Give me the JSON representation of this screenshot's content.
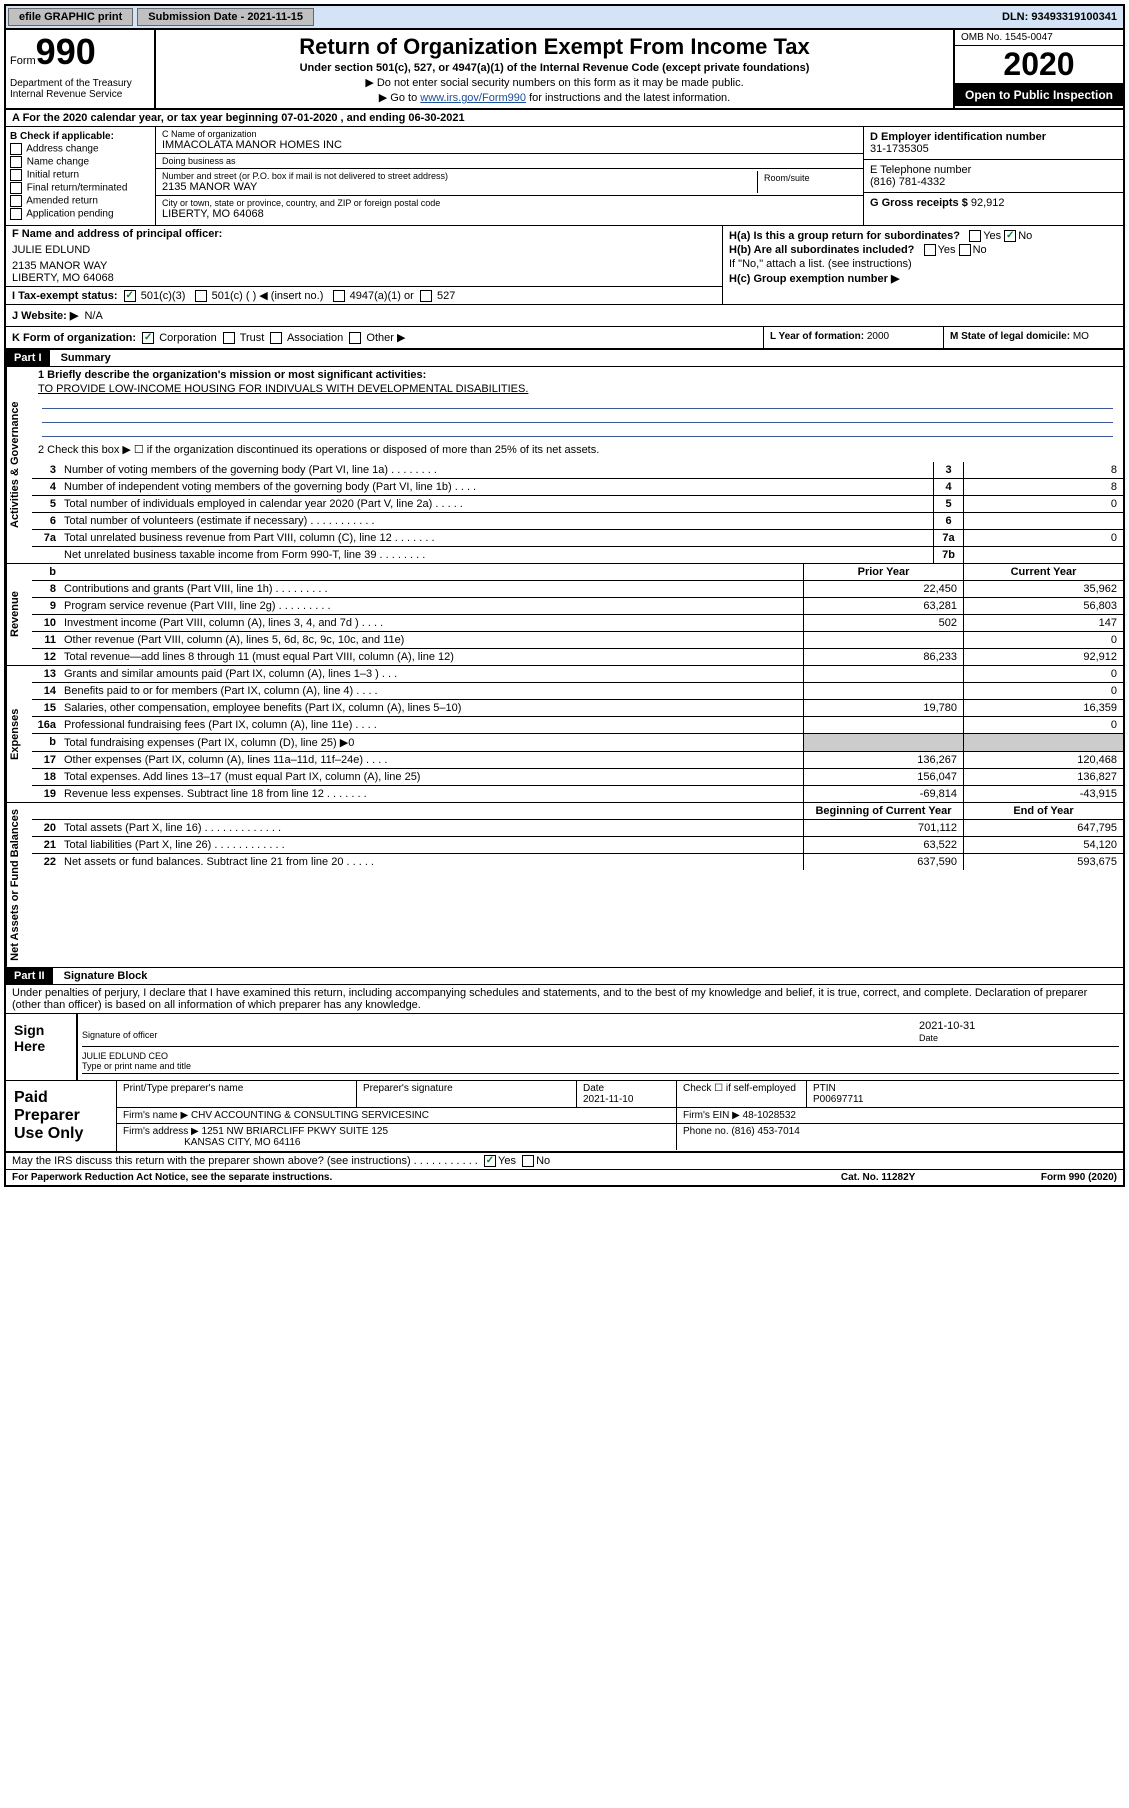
{
  "topbar": {
    "efile": "efile GRAPHIC print",
    "subdate_lbl": "Submission Date - 2021-11-15",
    "dln": "DLN: 93493319100341"
  },
  "header": {
    "form_lbl": "Form",
    "form_no": "990",
    "dept": "Department of the Treasury\nInternal Revenue Service",
    "title": "Return of Organization Exempt From Income Tax",
    "sub": "Under section 501(c), 527, or 4947(a)(1) of the Internal Revenue Code (except private foundations)",
    "note1": "▶ Do not enter social security numbers on this form as it may be made public.",
    "note2_pre": "▶ Go to ",
    "note2_link": "www.irs.gov/Form990",
    "note2_post": " for instructions and the latest information.",
    "omb": "OMB No. 1545-0047",
    "year": "2020",
    "open": "Open to Public Inspection"
  },
  "a_row": "A For the 2020 calendar year, or tax year beginning 07-01-2020    , and ending 06-30-2021",
  "b": {
    "hdr": "B Check if applicable:",
    "opts": [
      "Address change",
      "Name change",
      "Initial return",
      "Final return/terminated",
      "Amended return",
      "Application pending"
    ]
  },
  "c": {
    "name_lbl": "C Name of organization",
    "name": "IMMACOLATA MANOR HOMES INC",
    "dba_lbl": "Doing business as",
    "addr_lbl": "Number and street (or P.O. box if mail is not delivered to street address)",
    "addr": "2135 MANOR WAY",
    "room_lbl": "Room/suite",
    "city_lbl": "City or town, state or province, country, and ZIP or foreign postal code",
    "city": "LIBERTY, MO  64068"
  },
  "d": {
    "lbl": "D Employer identification number",
    "val": "31-1735305"
  },
  "e": {
    "lbl": "E Telephone number",
    "val": "(816) 781-4332"
  },
  "g": {
    "lbl": "G Gross receipts $",
    "val": "92,912"
  },
  "f": {
    "lbl": "F Name and address of principal officer:",
    "name": "JULIE EDLUND",
    "addr": "2135 MANOR WAY\nLIBERTY, MO  64068"
  },
  "h": {
    "a": "H(a)  Is this a group return for subordinates?",
    "b": "H(b)  Are all subordinates included?",
    "bnote": "If \"No,\" attach a list. (see instructions)",
    "c": "H(c)  Group exemption number ▶"
  },
  "i": {
    "lbl": "I   Tax-exempt status:",
    "o1": "501(c)(3)",
    "o2": "501(c) (  ) ◀ (insert no.)",
    "o3": "4947(a)(1) or",
    "o4": "527"
  },
  "j": {
    "lbl": "J   Website: ▶",
    "val": "N/A"
  },
  "k": {
    "lbl": "K Form of organization:",
    "opts": [
      "Corporation",
      "Trust",
      "Association",
      "Other ▶"
    ],
    "l_lbl": "L Year of formation:",
    "l_val": "2000",
    "m_lbl": "M State of legal domicile:",
    "m_val": "MO"
  },
  "part1": {
    "hdr": "Part I",
    "title": "Summary",
    "l1": "1   Briefly describe the organization's mission or most significant activities:",
    "mission": "TO PROVIDE LOW-INCOME HOUSING FOR INDIVUALS WITH DEVELOPMENTAL DISABILITIES.",
    "l2": "2    Check this box ▶ ☐  if the organization discontinued its operations or disposed of more than 25% of its net assets."
  },
  "gov_side": "Activities & Governance",
  "rev_side": "Revenue",
  "exp_side": "Expenses",
  "net_side": "Net Assets or Fund Balances",
  "gov_lines": [
    {
      "n": "3",
      "d": "Number of voting members of the governing body (Part VI, line 1a)  .    .    .    .    .    .    .    .",
      "cn": "3",
      "v": "8"
    },
    {
      "n": "4",
      "d": "Number of independent voting members of the governing body (Part VI, line 1b)  .    .    .    .",
      "cn": "4",
      "v": "8"
    },
    {
      "n": "5",
      "d": "Total number of individuals employed in calendar year 2020 (Part V, line 2a)   .    .    .    .    .",
      "cn": "5",
      "v": "0"
    },
    {
      "n": "6",
      "d": "Total number of volunteers (estimate if necessary)   .    .    .    .    .    .    .    .    .    .    .",
      "cn": "6",
      "v": ""
    },
    {
      "n": "7a",
      "d": "Total unrelated business revenue from Part VIII, column (C), line 12   .    .    .    .    .    .    .",
      "cn": "7a",
      "v": "0"
    },
    {
      "n": "",
      "d": "Net unrelated business taxable income from Form 990-T, line 39   .    .    .    .    .    .    .    .",
      "cn": "7b",
      "v": ""
    }
  ],
  "col_hdr": {
    "b": "b",
    "py": "Prior Year",
    "cy": "Current Year"
  },
  "rev_lines": [
    {
      "n": "8",
      "d": "Contributions and grants (Part VIII, line 1h)   .    .    .    .    .    .    .    .    .",
      "py": "22,450",
      "cy": "35,962"
    },
    {
      "n": "9",
      "d": "Program service revenue (Part VIII, line 2g)   .    .    .    .    .    .    .    .    .",
      "py": "63,281",
      "cy": "56,803"
    },
    {
      "n": "10",
      "d": "Investment income (Part VIII, column (A), lines 3, 4, and 7d )   .    .    .    .",
      "py": "502",
      "cy": "147"
    },
    {
      "n": "11",
      "d": "Other revenue (Part VIII, column (A), lines 5, 6d, 8c, 9c, 10c, and 11e)",
      "py": "",
      "cy": "0"
    },
    {
      "n": "12",
      "d": "Total revenue—add lines 8 through 11 (must equal Part VIII, column (A), line 12)",
      "py": "86,233",
      "cy": "92,912"
    }
  ],
  "exp_lines": [
    {
      "n": "13",
      "d": "Grants and similar amounts paid (Part IX, column (A), lines 1–3 )   .    .    .",
      "py": "",
      "cy": "0"
    },
    {
      "n": "14",
      "d": "Benefits paid to or for members (Part IX, column (A), line 4)   .    .    .    .",
      "py": "",
      "cy": "0"
    },
    {
      "n": "15",
      "d": "Salaries, other compensation, employee benefits (Part IX, column (A), lines 5–10)",
      "py": "19,780",
      "cy": "16,359"
    },
    {
      "n": "16a",
      "d": "Professional fundraising fees (Part IX, column (A), line 11e)   .    .    .    .",
      "py": "",
      "cy": "0"
    },
    {
      "n": "b",
      "d": "Total fundraising expenses (Part IX, column (D), line 25) ▶0",
      "py": "—",
      "cy": "—"
    },
    {
      "n": "17",
      "d": "Other expenses (Part IX, column (A), lines 11a–11d, 11f–24e)   .    .    .    .",
      "py": "136,267",
      "cy": "120,468"
    },
    {
      "n": "18",
      "d": "Total expenses. Add lines 13–17 (must equal Part IX, column (A), line 25)",
      "py": "156,047",
      "cy": "136,827"
    },
    {
      "n": "19",
      "d": "Revenue less expenses. Subtract line 18 from line 12  .    .    .    .    .    .    .",
      "py": "-69,814",
      "cy": "-43,915"
    }
  ],
  "net_hdr": {
    "py": "Beginning of Current Year",
    "cy": "End of Year"
  },
  "net_lines": [
    {
      "n": "20",
      "d": "Total assets (Part X, line 16)   .    .    .    .    .    .    .    .    .    .    .    .    .",
      "py": "701,112",
      "cy": "647,795"
    },
    {
      "n": "21",
      "d": "Total liabilities (Part X, line 26)  .    .    .    .    .    .    .    .    .    .    .    .",
      "py": "63,522",
      "cy": "54,120"
    },
    {
      "n": "22",
      "d": "Net assets or fund balances. Subtract line 21 from line 20  .    .    .    .    .",
      "py": "637,590",
      "cy": "593,675"
    }
  ],
  "part2": {
    "hdr": "Part II",
    "title": "Signature Block",
    "decl": "Under penalties of perjury, I declare that I have examined this return, including accompanying schedules and statements, and to the best of my knowledge and belief, it is true, correct, and complete. Declaration of preparer (other than officer) is based on all information of which preparer has any knowledge."
  },
  "sign": {
    "lbl": "Sign\nHere",
    "off_lbl": "Signature of officer",
    "date": "2021-10-31",
    "date_lbl": "Date",
    "name": "JULIE EDLUND CEO",
    "name_lbl": "Type or print name and title"
  },
  "prep": {
    "lbl": "Paid\nPreparer\nUse Only",
    "h1": "Print/Type preparer's name",
    "h2": "Preparer's signature",
    "h3": "Date",
    "h3v": "2021-11-10",
    "h4": "Check ☐ if self-employed",
    "h5": "PTIN",
    "h5v": "P00697711",
    "firm_lbl": "Firm's name    ▶",
    "firm": "CHV ACCOUNTING & CONSULTING SERVICESINC",
    "ein_lbl": "Firm's EIN ▶",
    "ein": "48-1028532",
    "addr_lbl": "Firm's address ▶",
    "addr1": "1251 NW BRIARCLIFF PKWY SUITE 125",
    "addr2": "KANSAS CITY, MO  64116",
    "ph_lbl": "Phone no.",
    "ph": "(816) 453-7014"
  },
  "discuss": "May the IRS discuss this return with the preparer shown above? (see instructions)   .    .    .    .    .    .    .    .    .    .    .",
  "foot": {
    "l": "For Paperwork Reduction Act Notice, see the separate instructions.",
    "m": "Cat. No. 11282Y",
    "r": "Form 990 (2020)"
  }
}
